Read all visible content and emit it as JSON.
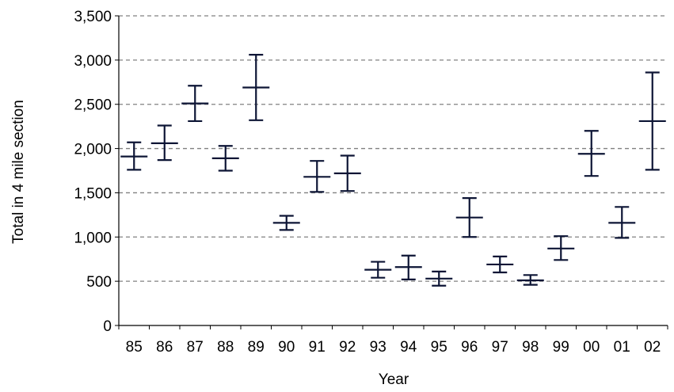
{
  "chart_data": {
    "type": "scatter",
    "title": "",
    "xlabel": "Year",
    "ylabel": "Total in 4 mile section",
    "ylim": [
      0,
      3500
    ],
    "yticks": [
      0,
      500,
      1000,
      1500,
      2000,
      2500,
      3000,
      3500
    ],
    "ytick_labels": [
      "0",
      "500",
      "1,000",
      "1,500",
      "2,000",
      "2,500",
      "3,000",
      "3,500"
    ],
    "grid": "horizontal dashed",
    "colors": {
      "marker": "#0d1535",
      "grid": "#808080",
      "axis": "#000000"
    },
    "categories": [
      "85",
      "86",
      "87",
      "88",
      "89",
      "90",
      "91",
      "92",
      "93",
      "94",
      "95",
      "96",
      "97",
      "98",
      "99",
      "00",
      "01",
      "02"
    ],
    "values": [
      1910,
      2060,
      2510,
      1890,
      2690,
      1160,
      1680,
      1720,
      630,
      660,
      530,
      1220,
      690,
      510,
      870,
      1940,
      1160,
      2310
    ],
    "error_low": [
      1760,
      1870,
      2310,
      1750,
      2320,
      1080,
      1510,
      1520,
      540,
      520,
      450,
      1000,
      600,
      460,
      740,
      1690,
      990,
      1760
    ],
    "error_high": [
      2070,
      2260,
      2710,
      2030,
      3060,
      1240,
      1860,
      1920,
      720,
      790,
      610,
      1440,
      780,
      570,
      1010,
      2200,
      1340,
      2860
    ]
  }
}
